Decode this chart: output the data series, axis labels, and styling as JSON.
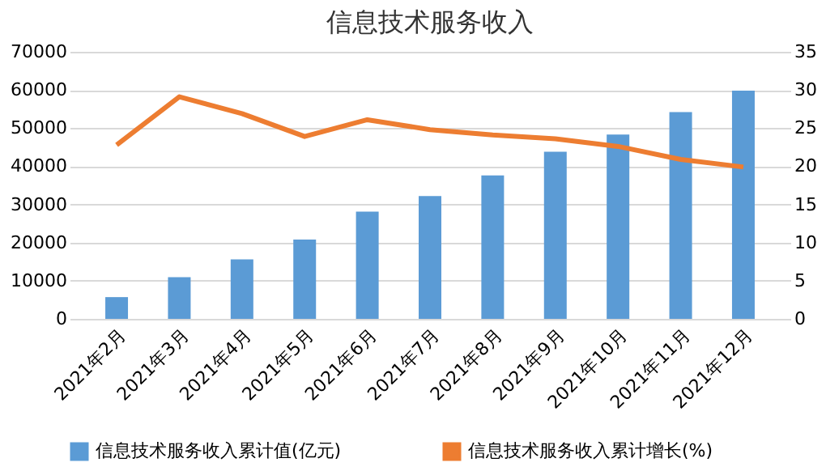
{
  "chart_data": {
    "type": "bar",
    "title": "信息技术服务收入",
    "categories": [
      "2021年2月",
      "2021年3月",
      "2021年4月",
      "2021年5月",
      "2021年6月",
      "2021年7月",
      "2021年8月",
      "2021年9月",
      "2021年10月",
      "2021年11月",
      "2021年12月"
    ],
    "series": [
      {
        "name": "信息技术服务收入累计值(亿元)",
        "color": "#5b9bd5",
        "values": [
          5700,
          10900,
          15600,
          20800,
          28100,
          32200,
          37600,
          43800,
          48300,
          54200,
          59800
        ]
      },
      {
        "name": "信息技术服务收入累计增长(%)",
        "type": "line",
        "axis": "y2",
        "color": "#ed7d31",
        "values": [
          22.8,
          29.1,
          26.9,
          23.9,
          26.1,
          24.8,
          24.1,
          23.6,
          22.6,
          20.9,
          19.9
        ]
      }
    ],
    "ylim": [
      0,
      70000
    ],
    "yticks": [
      0,
      10000,
      20000,
      30000,
      40000,
      50000,
      60000,
      70000
    ],
    "y2lim": [
      0,
      35
    ],
    "y2ticks": [
      0,
      5,
      10,
      15,
      20,
      25,
      30,
      35
    ],
    "grid": "y",
    "legend": "bottom"
  }
}
